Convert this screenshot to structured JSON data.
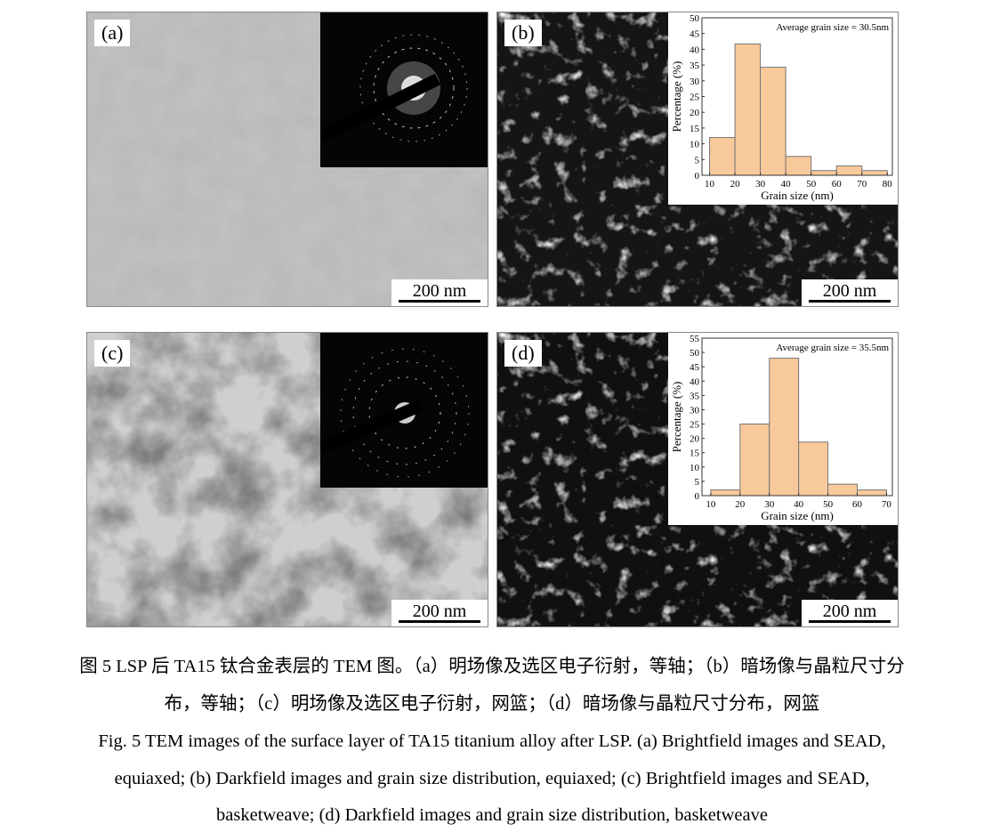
{
  "panels": [
    {
      "label": "(a)",
      "scale": "200 nm",
      "type": "brightfield"
    },
    {
      "label": "(b)",
      "scale": "200 nm",
      "type": "darkfield"
    },
    {
      "label": "(c)",
      "scale": "200 nm",
      "type": "brightfield"
    },
    {
      "label": "(d)",
      "scale": "200 nm",
      "type": "darkfield"
    }
  ],
  "chart_data": [
    {
      "panel": "(b)",
      "type": "bar",
      "annotation": "Average grain size = 30.5nm",
      "xlabel": "Grain size (nm)",
      "ylabel": "Percentage (%)",
      "bins": [
        [
          10,
          20
        ],
        [
          20,
          30
        ],
        [
          30,
          40
        ],
        [
          40,
          50
        ],
        [
          50,
          60
        ],
        [
          60,
          70
        ],
        [
          70,
          80
        ]
      ],
      "values": [
        12,
        41.7,
        34.3,
        6,
        1.5,
        3,
        1.5
      ],
      "xticks": [
        10,
        20,
        30,
        40,
        50,
        60,
        70,
        80
      ],
      "yticks": [
        0,
        5,
        10,
        15,
        20,
        25,
        30,
        35,
        40,
        45,
        50
      ],
      "xlim": [
        7,
        82
      ],
      "ylim": [
        0,
        50
      ],
      "color": "#f8c99a"
    },
    {
      "panel": "(d)",
      "type": "bar",
      "annotation": "Average grain size = 35.5nm",
      "xlabel": "Grain size (nm)",
      "ylabel": "Percentage (%)",
      "bins": [
        [
          10,
          20
        ],
        [
          20,
          30
        ],
        [
          30,
          40
        ],
        [
          40,
          50
        ],
        [
          50,
          60
        ],
        [
          60,
          70
        ]
      ],
      "values": [
        2,
        25,
        48,
        18.7,
        4,
        2
      ],
      "xticks": [
        10,
        20,
        30,
        40,
        50,
        60,
        70
      ],
      "yticks": [
        0,
        5,
        10,
        15,
        20,
        25,
        30,
        35,
        40,
        45,
        50,
        55
      ],
      "xlim": [
        7,
        72
      ],
      "ylim": [
        0,
        55
      ],
      "color": "#f8c99a"
    }
  ],
  "caption": {
    "zh_line1": "图 5 LSP 后 TA15 钛合金表层的 TEM 图。（a）明场像及选区电子衍射，等轴；（b）暗场像与晶粒尺寸分",
    "zh_line2": "布，等轴；（c）明场像及选区电子衍射，网篮；（d）暗场像与晶粒尺寸分布，网篮",
    "en_line1": "Fig. 5 TEM images of the surface layer of TA15 titanium alloy after LSP. (a) Brightfield images and SEAD,",
    "en_line2": "equiaxed; (b) Darkfield images and grain size distribution, equiaxed; (c) Brightfield images and SEAD,",
    "en_line3": "basketweave; (d) Darkfield images and grain size distribution, basketweave"
  }
}
